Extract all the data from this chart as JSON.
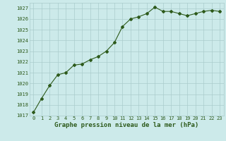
{
  "x": [
    0,
    1,
    2,
    3,
    4,
    5,
    6,
    7,
    8,
    9,
    10,
    11,
    12,
    13,
    14,
    15,
    16,
    17,
    18,
    19,
    20,
    21,
    22,
    23
  ],
  "y": [
    1017.3,
    1018.6,
    1019.8,
    1020.8,
    1021.0,
    1021.7,
    1021.8,
    1022.2,
    1022.5,
    1023.0,
    1023.8,
    1025.3,
    1026.0,
    1026.2,
    1026.5,
    1027.1,
    1026.7,
    1026.7,
    1026.5,
    1026.3,
    1026.5,
    1026.7,
    1026.8,
    1026.7
  ],
  "ylim": [
    1017,
    1027.5
  ],
  "yticks": [
    1017,
    1018,
    1019,
    1020,
    1021,
    1022,
    1023,
    1024,
    1025,
    1026,
    1027
  ],
  "xticks": [
    0,
    1,
    2,
    3,
    4,
    5,
    6,
    7,
    8,
    9,
    10,
    11,
    12,
    13,
    14,
    15,
    16,
    17,
    18,
    19,
    20,
    21,
    22,
    23
  ],
  "xlabel": "Graphe pression niveau de la mer (hPa)",
  "line_color": "#2d5a1b",
  "marker": "D",
  "marker_size": 2.0,
  "line_width": 0.8,
  "bg_color": "#cceaea",
  "grid_color": "#aacccc",
  "tick_color": "#2d5a1b",
  "label_color": "#2d5a1b",
  "tick_fontsize": 5.0,
  "xlabel_fontsize": 6.5
}
